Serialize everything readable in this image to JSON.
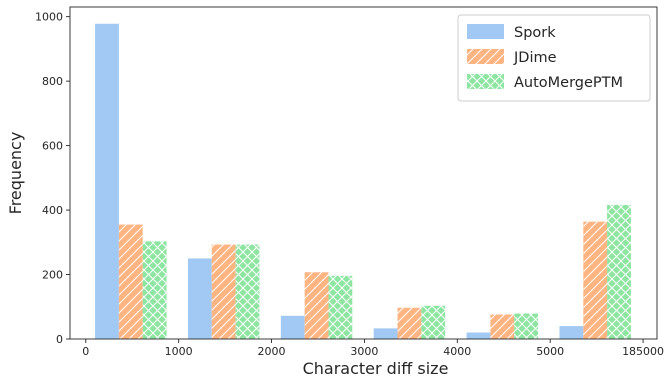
{
  "chart_data": {
    "type": "bar",
    "title": "",
    "xlabel": "Character diff size",
    "ylabel": "Frequency",
    "x_tick_labels": [
      "0",
      "1000",
      "2000",
      "3000",
      "4000",
      "5000",
      "185000"
    ],
    "y_ticks": [
      0,
      200,
      400,
      600,
      800,
      1000
    ],
    "ylim": [
      0,
      1030
    ],
    "grid": false,
    "legend_position": "top-right",
    "bins": [
      "0-1000",
      "1000-2000",
      "2000-3000",
      "3000-4000",
      "4000-5000",
      "5000-185000"
    ],
    "series": [
      {
        "name": "Spork",
        "color": "#a1c9f4",
        "hatch": "none",
        "values": [
          978,
          250,
          72,
          33,
          20,
          40
        ]
      },
      {
        "name": "JDime",
        "color": "#ffb482",
        "hatch": "diagonal",
        "values": [
          355,
          293,
          207,
          97,
          76,
          364
        ]
      },
      {
        "name": "AutoMergePTM",
        "color": "#8de5a1",
        "hatch": "crosshatch",
        "values": [
          303,
          293,
          196,
          103,
          79,
          416
        ]
      }
    ]
  }
}
